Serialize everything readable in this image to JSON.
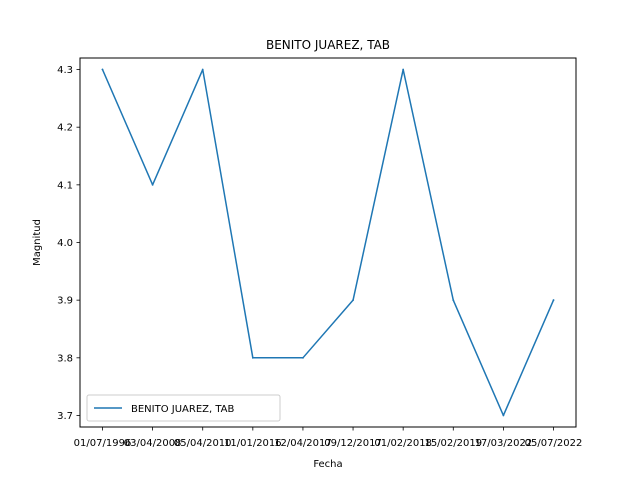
{
  "chart_data": {
    "type": "line",
    "title": "BENITO JUAREZ, TAB",
    "xlabel": "Fecha",
    "ylabel": "Magnitud",
    "categories": [
      "01/07/1996",
      "03/04/2008",
      "05/04/2010",
      "11/01/2016",
      "12/04/2017",
      "09/12/2017",
      "01/02/2018",
      "15/02/2019",
      "17/03/2022",
      "05/07/2022"
    ],
    "series": [
      {
        "name": "BENITO JUAREZ, TAB",
        "values": [
          4.3,
          4.1,
          4.3,
          3.8,
          3.8,
          3.9,
          4.3,
          3.9,
          3.7,
          3.9
        ],
        "color": "#1f77b4"
      }
    ],
    "ylim": [
      3.68,
      4.32
    ],
    "yticks": [
      "3.7",
      "3.8",
      "3.9",
      "4.0",
      "4.1",
      "4.2",
      "4.3"
    ],
    "grid": false,
    "legend_position": "lower-left"
  }
}
